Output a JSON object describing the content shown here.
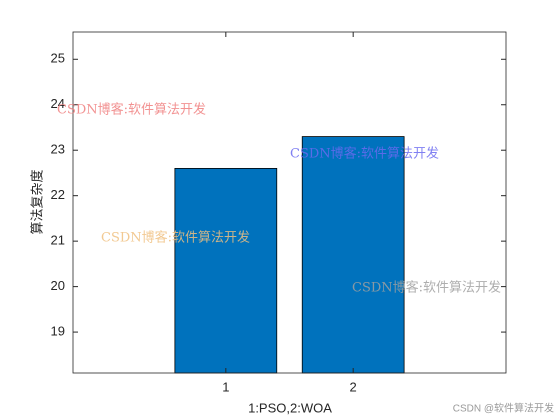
{
  "chart_data": {
    "type": "bar",
    "x": [
      1,
      2
    ],
    "values": [
      22.6,
      23.3
    ],
    "color": "#0072bd",
    "edge_color": "#000000",
    "bar_width": 0.8,
    "xlim": [
      -0.2,
      3.2
    ],
    "xticks": [
      1,
      2
    ],
    "ylim": [
      18.1,
      25.6
    ],
    "yticks": [
      19,
      20,
      21,
      22,
      23,
      24,
      25
    ],
    "xlabel": "1:PSO,2:WOA",
    "ylabel": "算法复杂度",
    "grid": false,
    "watermarks": [
      {
        "text": "CSDN博客:软件算法开发",
        "color": "#f08080"
      },
      {
        "text": "CSDN博客:软件算法开发",
        "color": "#6a6af0"
      },
      {
        "text": "CSDN博客:软件算法开发",
        "color": "#f0c080"
      },
      {
        "text": "CSDN博客:软件算法开发",
        "color": "#a0a0a0"
      }
    ],
    "footer": "CSDN @软件算法开发"
  }
}
